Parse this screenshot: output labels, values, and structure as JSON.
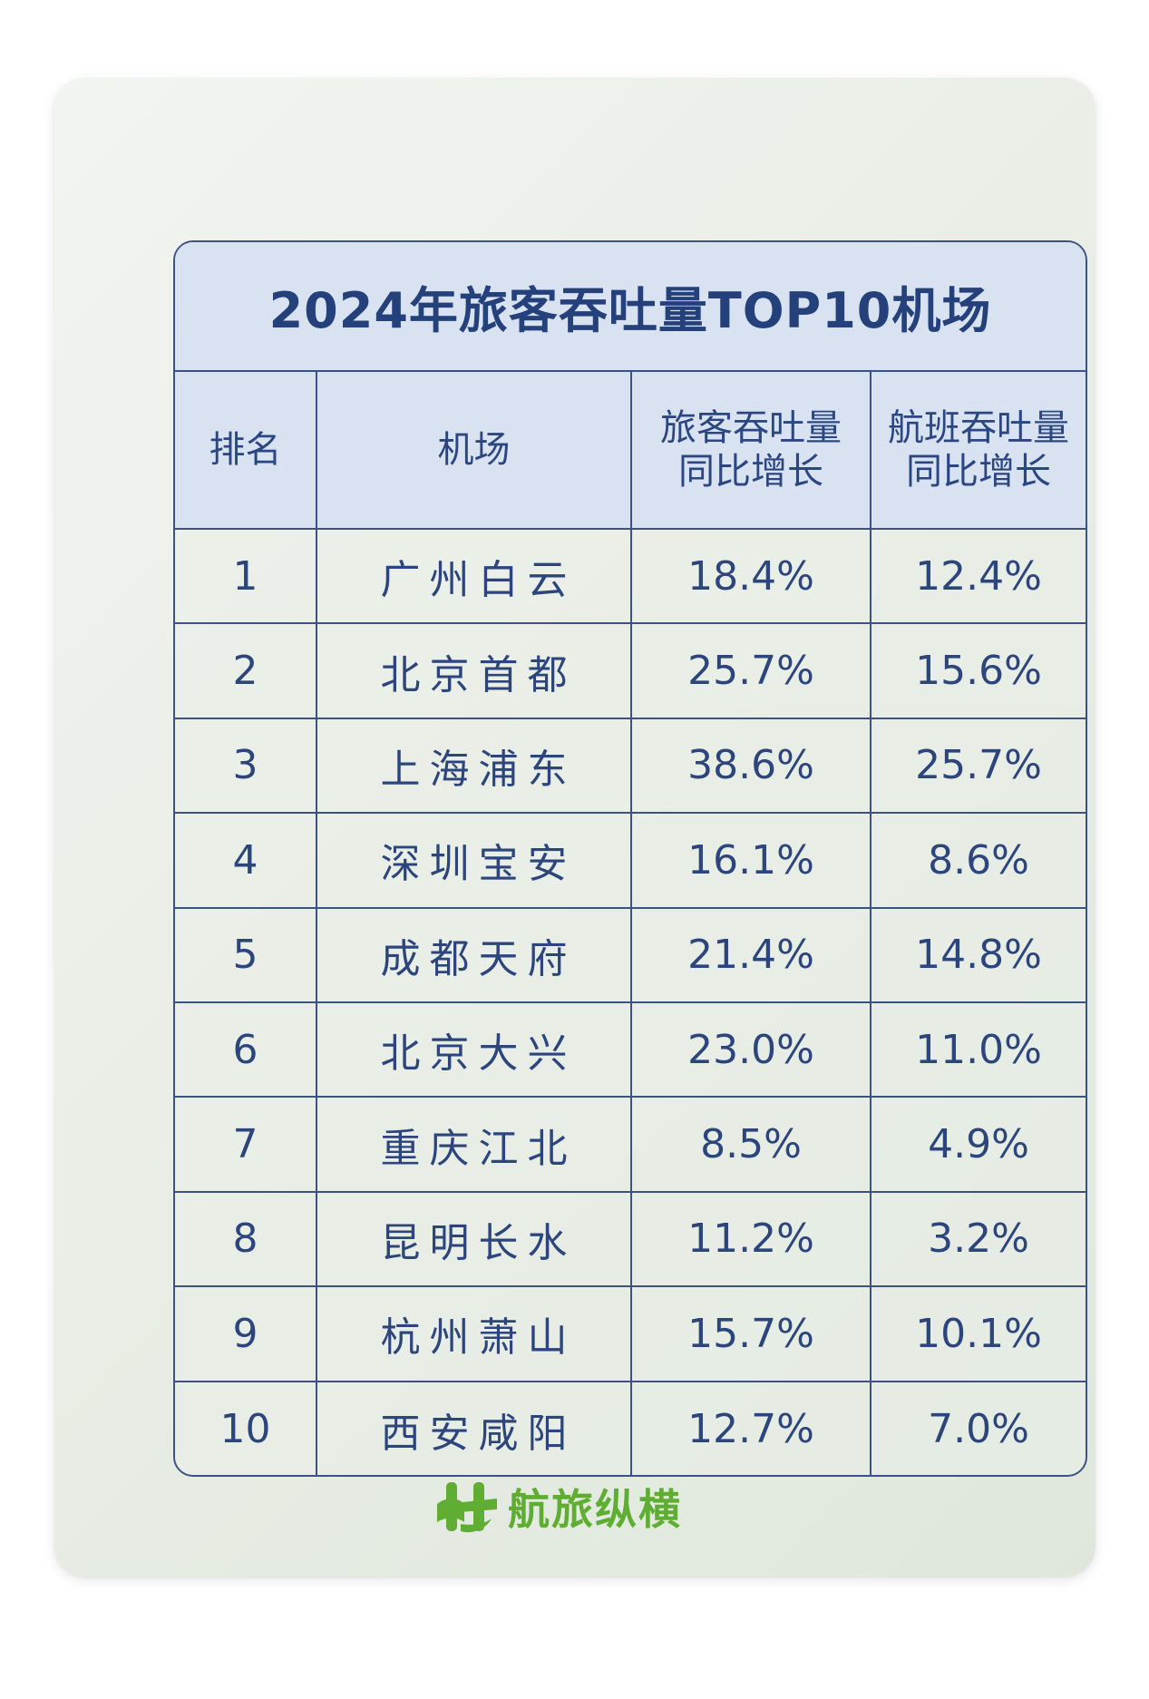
{
  "title": "2024年旅客吞吐量TOP10机场",
  "headers": {
    "rank": "排名",
    "airport": "机场",
    "passenger_line1": "旅客吞吐量",
    "passenger_line2": "同比增长",
    "flight_line1": "航班吞吐量",
    "flight_line2": "同比增长"
  },
  "rows": [
    {
      "rank": "1",
      "airport": "广州白云",
      "passenger": "18.4%",
      "flight": "12.4%"
    },
    {
      "rank": "2",
      "airport": "北京首都",
      "passenger": "25.7%",
      "flight": "15.6%"
    },
    {
      "rank": "3",
      "airport": "上海浦东",
      "passenger": "38.6%",
      "flight": "25.7%"
    },
    {
      "rank": "4",
      "airport": "深圳宝安",
      "passenger": "16.1%",
      "flight": "8.6%"
    },
    {
      "rank": "5",
      "airport": "成都天府",
      "passenger": "21.4%",
      "flight": "14.8%"
    },
    {
      "rank": "6",
      "airport": "北京大兴",
      "passenger": "23.0%",
      "flight": "11.0%"
    },
    {
      "rank": "7",
      "airport": "重庆江北",
      "passenger": "8.5%",
      "flight": "4.9%"
    },
    {
      "rank": "8",
      "airport": "昆明长水",
      "passenger": "11.2%",
      "flight": "3.2%"
    },
    {
      "rank": "9",
      "airport": "杭州萧山",
      "passenger": "15.7%",
      "flight": "10.1%"
    },
    {
      "rank": "10",
      "airport": "西安咸阳",
      "passenger": "12.7%",
      "flight": "7.0%"
    }
  ],
  "brand": {
    "name": "航旅纵横",
    "color": "#5fae33",
    "icon": "hanglv-logo-icon"
  },
  "colors": {
    "header_bg": "#d9e2f1",
    "text": "#24417c",
    "border": "#3d5283"
  }
}
